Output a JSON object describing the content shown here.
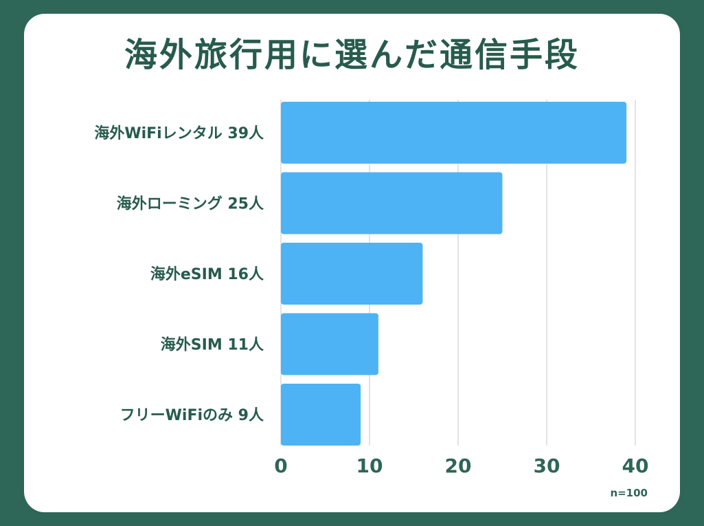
{
  "chart_data": {
    "type": "bar",
    "orientation": "horizontal",
    "title": "海外旅行用に選んだ通信手段",
    "categories": [
      "海外WiFiレンタル 39人",
      "海外ローミング 25人",
      "海外eSIM 16人",
      "海外SIM 11人",
      "フリーWiFiのみ 9人"
    ],
    "values": [
      39,
      25,
      16,
      11,
      9
    ],
    "xlim": [
      0,
      40
    ],
    "xticks": [
      "0",
      "10",
      "20",
      "30",
      "40"
    ],
    "grid": true,
    "note": "n=100",
    "colors": {
      "bar": "#4db3f5",
      "background": "#2e6657",
      "card": "#ffffff",
      "text": "#275b4d",
      "grid": "#e3e3e3"
    }
  }
}
